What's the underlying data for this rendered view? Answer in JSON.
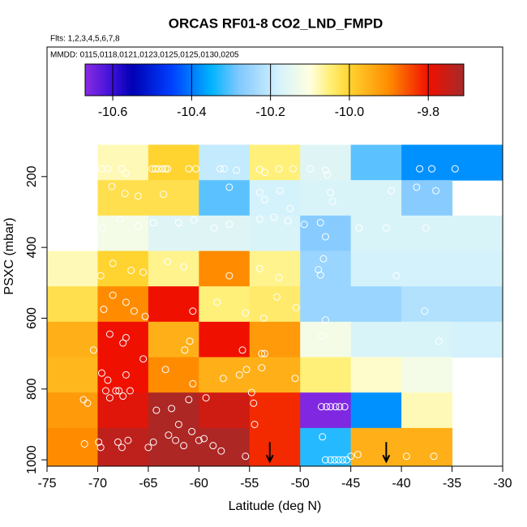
{
  "chart_data": {
    "type": "heatmap",
    "title": "ORCAS RF01-8 CO2_LND_FMPD",
    "subtitle": "Flts: 1,2,3,4,5,6,7,8",
    "annotation": "MMDD: 0115,0118,0121,0123,0125,0125,0130,0205",
    "x_label": "Latitude (deg N)",
    "y_label": "PSXC (mbar)",
    "xlim": [
      -75,
      -30
    ],
    "xticks": [
      -75,
      -70,
      -65,
      -60,
      -55,
      -50,
      -45,
      -40,
      -35,
      -30
    ],
    "ylim": [
      1018,
      -166
    ],
    "yticks": [
      200,
      400,
      600,
      800,
      1000
    ],
    "x_edges": [
      -75,
      -70,
      -65,
      -60,
      -55,
      -50,
      -45,
      -40,
      -35,
      -30
    ],
    "y_edges": [
      110,
      210,
      310,
      410,
      510,
      610,
      710,
      810,
      910,
      1018
    ],
    "values": [
      [
        null,
        -10.08,
        -10.0,
        -10.2,
        -10.05,
        -10.16,
        -10.3,
        -10.38,
        -10.38
      ],
      [
        null,
        -10.02,
        -10.02,
        -10.3,
        -10.18,
        -10.17,
        -10.17,
        -10.27,
        null
      ],
      [
        null,
        -10.12,
        -10.16,
        -10.16,
        -10.17,
        -10.27,
        -10.17,
        -10.17,
        -10.17
      ],
      [
        -10.08,
        -10.0,
        -10.06,
        -9.9,
        -10.06,
        -10.25,
        -10.18,
        -10.18,
        -10.18
      ],
      [
        -10.02,
        -9.9,
        -9.8,
        -10.05,
        -10.04,
        -10.25,
        -10.25,
        -10.22,
        -10.22
      ],
      [
        -9.95,
        -9.8,
        -9.95,
        -9.8,
        -9.92,
        -10.12,
        -10.17,
        -10.17,
        -10.18
      ],
      [
        -9.96,
        -9.8,
        -9.9,
        -9.95,
        -9.95,
        -10.05,
        -10.09,
        -10.12,
        null
      ],
      [
        -9.92,
        -9.78,
        -9.72,
        -9.76,
        -9.82,
        -10.66,
        -10.38,
        -10.08,
        null
      ],
      [
        -9.9,
        -9.74,
        -9.72,
        -9.72,
        -9.82,
        -10.33,
        -9.95,
        -9.95,
        null
      ]
    ],
    "colorbar": {
      "lim": [
        -10.67,
        -9.71
      ],
      "ticks": [
        -10.6,
        -10.4,
        -10.2,
        {
          "value": -10.0,
          "label": "-10.0"
        },
        -9.8
      ],
      "colormap": [
        {
          "value": -10.67,
          "color": "#8a2be2"
        },
        {
          "value": -10.6,
          "color": "#3a10d8"
        },
        {
          "value": -10.55,
          "color": "#0000b4"
        },
        {
          "value": -10.45,
          "color": "#0040ff"
        },
        {
          "value": -10.35,
          "color": "#00b4ff"
        },
        {
          "value": -10.28,
          "color": "#80c8ff"
        },
        {
          "value": -10.18,
          "color": "#d4f2fc"
        },
        {
          "value": -10.1,
          "color": "#ffffe0"
        },
        {
          "value": -10.05,
          "color": "#fff07a"
        },
        {
          "value": -10.0,
          "color": "#ffd430"
        },
        {
          "value": -9.9,
          "color": "#ff8c00"
        },
        {
          "value": -9.8,
          "color": "#f01000"
        },
        {
          "value": -9.71,
          "color": "#a52a2a"
        }
      ]
    },
    "points": {
      "color": "#ffffff",
      "x": [
        -69.6,
        -69,
        -67.6,
        -67.2,
        -64.6,
        -64.3,
        -64,
        -63.6,
        -63.3,
        -63.1,
        -61,
        -60.3,
        -57.9,
        -57.5,
        -56.3,
        -54,
        -53.5,
        -52.1,
        -50.7,
        -49,
        -47.5,
        -47.3,
        -38.2,
        -37,
        -34.7,
        -68.6,
        -67.3,
        -66,
        -63.5,
        -57,
        -54,
        -53.5,
        -52,
        -51,
        -47,
        -46.8,
        -41,
        -38.5,
        -36.6,
        -69.5,
        -67.8,
        -66,
        -64.5,
        -62,
        -60.5,
        -58.5,
        -57,
        -54,
        -52.6,
        -51.2,
        -49.6,
        -48,
        -47.5,
        -44.2,
        -41.5,
        -37.6,
        -69.7,
        -68.5,
        -66.7,
        -65.5,
        -63.1,
        -61.5,
        -57,
        -54,
        -52.1,
        -48.2,
        -48,
        -47.7,
        -40.5,
        -69.4,
        -68.5,
        -67.2,
        -66.4,
        -65.3,
        -60.6,
        -58.2,
        -55.4,
        -53.6,
        -52.3,
        -50.4,
        -47.5,
        -37.7,
        -70.4,
        -68.8,
        -67.5,
        -67.2,
        -61.4,
        -60.9,
        -55.7,
        -53.8,
        -53.5,
        -47.8,
        -36.3,
        -69.6,
        -69,
        -67.2,
        -65.5,
        -63.3,
        -60.6,
        -57.6,
        -56,
        -55.3,
        -53.8,
        -50.5,
        -67.9,
        -71.4,
        -71,
        -69.2,
        -68.8,
        -68.2,
        -67.5,
        -66.8,
        -64.2,
        -62.7,
        -62,
        -61,
        -59.3,
        -54.8,
        -54.6,
        -54.5,
        -47.9,
        -47.4,
        -47,
        -46.5,
        -46.1,
        -45.6,
        -71.3,
        -69.9,
        -69.7,
        -68,
        -67.6,
        -67,
        -65,
        -64.5,
        -63,
        -62.3,
        -61.5,
        -60.7,
        -60,
        -59.5,
        -58.6,
        -57.8,
        -55.4,
        -47.5,
        -47,
        -46.6,
        -46.2,
        -45.8,
        -45.4,
        -45,
        -47.8,
        -44.3,
        -39.5,
        -36.8
      ],
      "y": [
        178,
        178,
        178,
        190,
        178,
        178,
        178,
        178,
        178,
        178,
        178,
        178,
        178,
        178,
        182,
        180,
        188,
        178,
        178,
        178,
        182,
        195,
        178,
        178,
        178,
        228,
        248,
        255,
        250,
        230,
        245,
        265,
        240,
        290,
        245,
        270,
        240,
        230,
        240,
        345,
        320,
        340,
        330,
        330,
        322,
        345,
        335,
        320,
        315,
        325,
        335,
        330,
        370,
        345,
        345,
        345,
        480,
        445,
        465,
        470,
        440,
        455,
        480,
        460,
        485,
        463,
        478,
        432,
        480,
        575,
        535,
        555,
        580,
        595,
        580,
        555,
        585,
        600,
        540,
        570,
        605,
        580,
        690,
        645,
        670,
        655,
        690,
        665,
        690,
        700,
        700,
        650,
        665,
        755,
        775,
        760,
        715,
        745,
        785,
        770,
        760,
        745,
        740,
        770,
        805,
        830,
        840,
        805,
        825,
        805,
        820,
        805,
        860,
        855,
        900,
        830,
        825,
        810,
        840,
        900,
        850,
        850,
        850,
        850,
        850,
        850,
        955,
        950,
        965,
        950,
        965,
        945,
        965,
        950,
        930,
        945,
        960,
        920,
        945,
        940,
        960,
        975,
        990,
        1000,
        1000,
        1000,
        1000,
        1000,
        1000,
        990,
        935,
        985,
        990,
        990
      ]
    },
    "arrows": [
      -53,
      -41.5
    ]
  }
}
